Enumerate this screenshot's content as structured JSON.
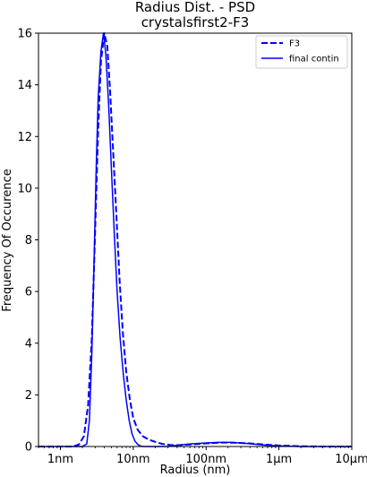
{
  "chart_data": {
    "type": "line",
    "title": "Radius Dist. - PSD",
    "subtitle": "crystalsfirst2-F3",
    "xlabel": "Radius (nm)",
    "ylabel": "Frequency Of Occurence",
    "xscale": "log",
    "xlim": [
      0.5,
      10000
    ],
    "ylim": [
      0,
      16
    ],
    "grid": false,
    "legend_position": "top-right",
    "x_ticks": [
      {
        "value": 1,
        "label": "1nm"
      },
      {
        "value": 10,
        "label": "10nm"
      },
      {
        "value": 100,
        "label": "100nm"
      },
      {
        "value": 1000,
        "label": "1µm"
      },
      {
        "value": 10000,
        "label": "10µm"
      }
    ],
    "y_ticks": [
      0,
      2,
      4,
      6,
      8,
      10,
      12,
      14,
      16
    ],
    "series": [
      {
        "name": "F3",
        "style": "dashed",
        "color": "#0000ff",
        "x": [
          0.5,
          1.5,
          1.8,
          2.1,
          2.4,
          2.7,
          3.0,
          3.3,
          3.6,
          4.0,
          4.4,
          4.8,
          5.3,
          5.9,
          6.5,
          7.2,
          8.0,
          9.0,
          10.0,
          11.5,
          13.5,
          16.0,
          20.0,
          25.0,
          32.0,
          40.0,
          60.0,
          100.0,
          150.0,
          220.0,
          350.0,
          550.0,
          1000.0,
          2000.0,
          4000.0,
          10000.0
        ],
        "y": [
          0,
          0,
          0.08,
          0.4,
          1.6,
          4.2,
          8.4,
          12.3,
          14.9,
          16.0,
          15.5,
          13.8,
          11.4,
          8.8,
          6.4,
          4.4,
          2.9,
          1.8,
          1.1,
          0.65,
          0.4,
          0.28,
          0.18,
          0.1,
          0.06,
          0.05,
          0.08,
          0.12,
          0.15,
          0.15,
          0.13,
          0.09,
          0.04,
          0.01,
          0,
          0
        ]
      },
      {
        "name": "final contin",
        "style": "solid",
        "color": "#0000ff",
        "x": [
          0.5,
          2.0,
          2.3,
          2.5,
          2.7,
          2.9,
          3.1,
          3.3,
          3.6,
          3.9,
          4.2,
          4.6,
          5.0,
          5.5,
          6.0,
          6.6,
          7.3,
          8.0,
          8.8,
          9.6,
          10.5,
          11.5,
          12.5,
          13.5,
          15.0,
          20.0,
          30.0,
          40.0,
          60.0,
          100.0,
          150.0,
          220.0,
          350.0,
          600.0,
          1000.0,
          2000.0,
          10000.0
        ],
        "y": [
          0,
          0,
          0.1,
          1.0,
          3.6,
          7.2,
          10.8,
          13.5,
          15.3,
          16.0,
          15.2,
          13.2,
          10.8,
          8.2,
          6.0,
          4.2,
          2.8,
          1.8,
          1.0,
          0.5,
          0.22,
          0.08,
          0.02,
          0,
          0,
          0,
          0,
          0.05,
          0.1,
          0.14,
          0.16,
          0.16,
          0.12,
          0.06,
          0.02,
          0,
          0
        ]
      }
    ]
  }
}
